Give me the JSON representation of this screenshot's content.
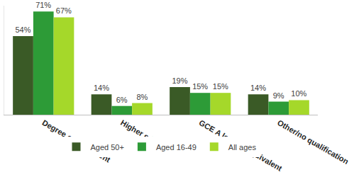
{
  "chart_data": {
    "type": "bar",
    "categories": [
      "Degree or equivalent",
      "Higher education",
      "GCE A level or equivalent",
      "Other/no qualification"
    ],
    "series": [
      {
        "name": "Aged 50+",
        "color": "#3a5a26",
        "values": [
          54,
          14,
          19,
          14
        ],
        "value_labels": [
          "54%",
          "14%",
          "19%",
          "14%"
        ]
      },
      {
        "name": "Aged 16-49",
        "color": "#2d9b37",
        "values": [
          71,
          6,
          15,
          9
        ],
        "value_labels": [
          "71%",
          "6%",
          "15%",
          "9%"
        ]
      },
      {
        "name": "All ages",
        "color": "#a5d82a",
        "values": [
          67,
          8,
          15,
          10
        ],
        "value_labels": [
          "67%",
          "8%",
          "15%",
          "10%"
        ]
      }
    ],
    "ylim": [
      0,
      75
    ],
    "grid": false,
    "legend": "bottom",
    "data_labels": true,
    "tick_labels": "x"
  }
}
